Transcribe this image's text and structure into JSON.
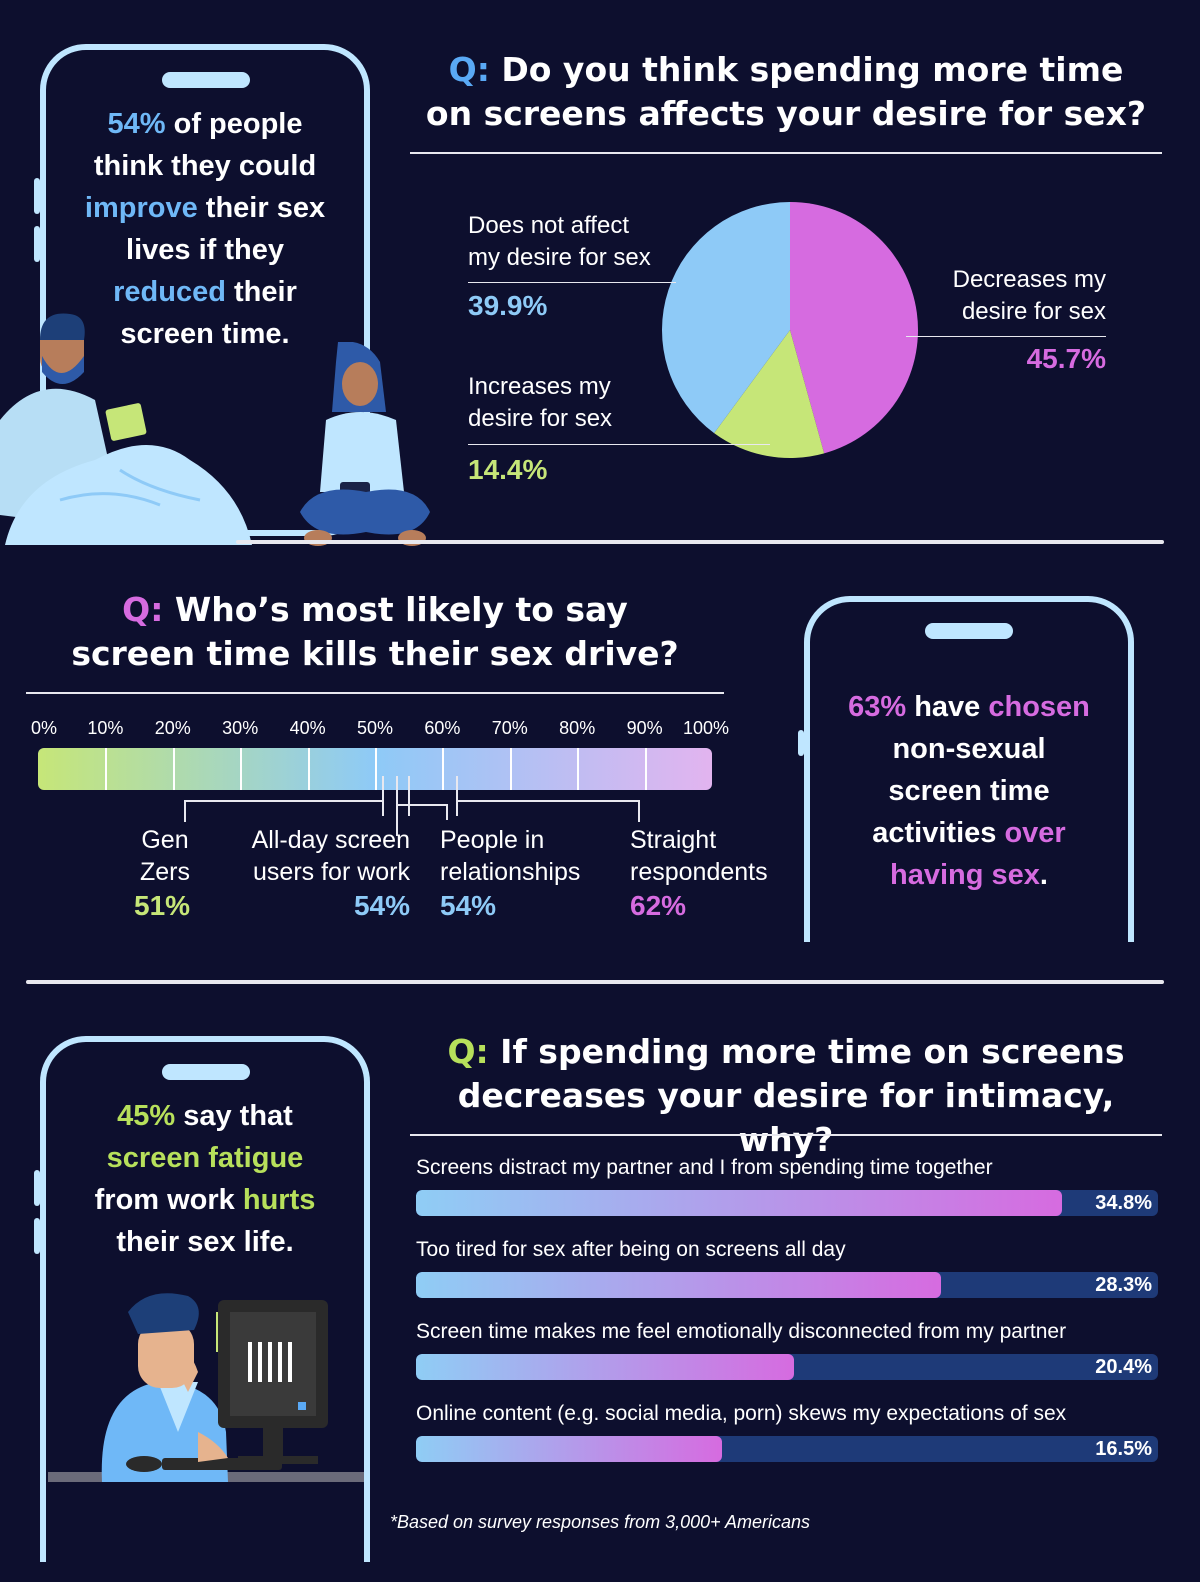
{
  "colors": {
    "background": "#0d0f2e",
    "blue": "#6fb8f7",
    "light_blue": "#8ecaf7",
    "pink": "#d66be0",
    "green": "#c6e678",
    "q_blue": "#5aa9f5",
    "q_pink": "#d66be0",
    "q_green": "#b7e05b"
  },
  "card1": {
    "line1_pct": "54%",
    "line1_rest": " of people",
    "line2": "think they could",
    "line3_hl": "improve",
    "line3_rest": " their sex",
    "line4": "lives if they",
    "line5_hl": "reduced",
    "line5_rest": " their",
    "line6": "screen time."
  },
  "q1": {
    "prefix": "Q:",
    "line1": " Do you think spending more time",
    "line2": "on screens affects your desire for sex?"
  },
  "q2": {
    "prefix": "Q:",
    "line1": " Who’s most likely to say",
    "line2": "screen time kills their sex drive?"
  },
  "card2": {
    "pct": "63%",
    "mid": " have ",
    "hl1": "chosen",
    "line2": "non-sexual",
    "line3": "screen time",
    "line4_pre": "activities ",
    "line4_hl": "over",
    "line5_hl": "having sex",
    "line5_end": "."
  },
  "card3": {
    "line1_pct": "45%",
    "line1_rest": " say that",
    "line2_hl": "screen fatigue",
    "line3_pre": "from work ",
    "line3_hl": "hurts",
    "line4": "their sex life."
  },
  "q3": {
    "prefix": "Q:",
    "line1": " If spending more time on screens",
    "line2": "decreases your desire for intimacy, why?"
  },
  "footnote": "*Based on survey responses from 3,000+ Americans",
  "chart_data": [
    {
      "type": "pie",
      "title": "Q: Do you think spending more time on screens affects your desire for sex?",
      "slices": [
        {
          "label_line1": "Decreases my",
          "label_line2": "desire for sex",
          "value": 45.7,
          "display": "45.7%",
          "color": "#d66be0"
        },
        {
          "label_line1": "Increases my",
          "label_line2": "desire for sex",
          "value": 14.4,
          "display": "14.4%",
          "color": "#c6e678"
        },
        {
          "label_line1": "Does not affect",
          "label_line2": "my desire for sex",
          "value": 39.9,
          "display": "39.9%",
          "color": "#8ecaf7"
        }
      ]
    },
    {
      "type": "bar",
      "title": "Q: Who’s most likely to say screen time kills their sex drive?",
      "axis_ticks": [
        "0%",
        "10%",
        "20%",
        "30%",
        "40%",
        "50%",
        "60%",
        "70%",
        "80%",
        "90%",
        "100%"
      ],
      "xlim": [
        0,
        100
      ],
      "groups": [
        {
          "line1": "Gen",
          "line2": "Zers",
          "value": 51,
          "display": "51%",
          "color": "#c6e678"
        },
        {
          "line1": "All-day screen",
          "line2": "users for work",
          "value": 54,
          "display": "54%",
          "color": "#8ecaf7"
        },
        {
          "line1": "People in",
          "line2": "relationships",
          "value": 54,
          "display": "54%",
          "color": "#8ecaf7"
        },
        {
          "line1": "Straight",
          "line2": "respondents",
          "value": 62,
          "display": "62%",
          "color": "#d66be0"
        }
      ]
    },
    {
      "type": "bar",
      "title": "Q: If spending more time on screens decreases your desire for intimacy, why?",
      "xlim": [
        0,
        40
      ],
      "categories": [
        "Screens distract my partner and I from spending time together",
        "Too tired for sex after being on screens all day",
        "Screen time makes me feel emotionally disconnected from my partner",
        "Online content (e.g. social media, porn) skews my expectations of sex"
      ],
      "values": [
        34.8,
        28.3,
        20.4,
        16.5
      ],
      "display": [
        "34.8%",
        "28.3%",
        "20.4%",
        "16.5%"
      ]
    }
  ]
}
